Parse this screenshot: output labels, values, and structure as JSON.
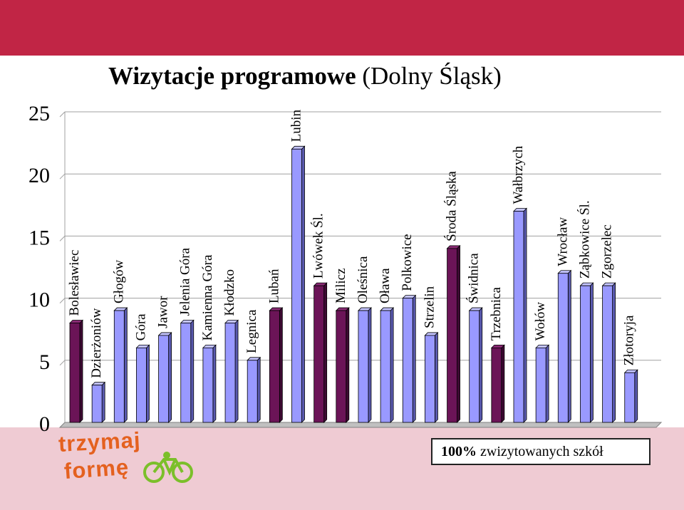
{
  "title_bold": "Wizytacje programowe",
  "title_rest": " (Dolny Śląsk)",
  "note": {
    "percent": "100%",
    "text": " zwizytowanych szkół"
  },
  "logo": {
    "line1": "trzymaj",
    "line2": "formę"
  },
  "colors": {
    "dark_bar": "#6b1457",
    "light_bar": "#9999ff",
    "top_band": "#c12545",
    "background": "#f2c8d0"
  },
  "chart_data": {
    "type": "bar",
    "title": "Wizytacje programowe (Dolny Śląsk)",
    "yticks": [
      0,
      5,
      10,
      15,
      20,
      25
    ],
    "ylim": [
      0,
      25
    ],
    "categories": [
      "Bolesławiec",
      "Dzierżoniów",
      "Głogów",
      "Góra",
      "Jawor",
      "Jelenia Góra",
      "Kamienna Góra",
      "Kłodzko",
      "Legnica",
      "Lubań",
      "Lubin",
      "Lwówek Śl.",
      "Milicz",
      "Oleśnica",
      "Oława",
      "Polkowice",
      "Strzelin",
      "Środa Śląska",
      "Świdnica",
      "Trzebnica",
      "Wałbrzych",
      "Wołów",
      "Wrocław",
      "Ząbkowice Śl.",
      "Zgorzelec",
      "Złotoryja"
    ],
    "values": [
      8,
      3,
      9,
      6,
      7,
      8,
      6,
      8,
      5,
      9,
      22,
      11,
      9,
      9,
      9,
      10,
      7,
      14,
      9,
      6,
      17,
      6,
      12,
      11,
      11,
      4
    ],
    "highlight": [
      true,
      false,
      false,
      false,
      false,
      false,
      false,
      false,
      false,
      true,
      false,
      true,
      true,
      false,
      false,
      false,
      false,
      true,
      false,
      true,
      false,
      false,
      false,
      false,
      false,
      false
    ],
    "grid": true
  }
}
